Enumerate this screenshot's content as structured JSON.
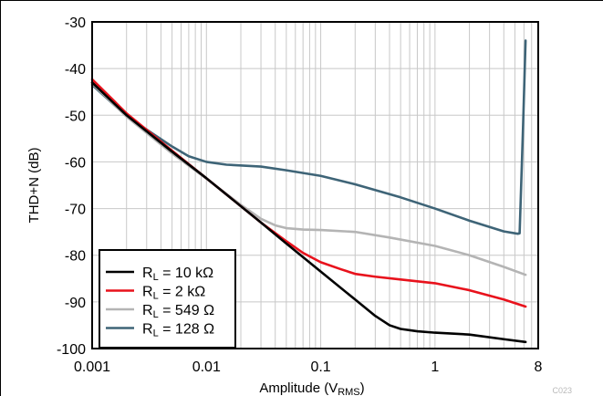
{
  "chart_data": {
    "type": "line",
    "xlabel_main": "Amplitude (V",
    "xlabel_sub": "RMS",
    "xlabel_close": ")",
    "ylabel": "THD+N (dB)",
    "xscale": "log",
    "xlim": [
      0.001,
      8
    ],
    "ylim": [
      -100,
      -30
    ],
    "grid": true,
    "legend_position": "bottom-left",
    "x_ticks": [
      "0.001",
      "0.01",
      "0.1",
      "1",
      "8"
    ],
    "y_ticks": [
      "-30",
      "-40",
      "-50",
      "-60",
      "-70",
      "-80",
      "-90",
      "-100"
    ],
    "series": [
      {
        "name": "R_L = 10 kΩ",
        "legend_prefix": "R",
        "legend_sub": "L",
        "legend_suffix": " = 10 kΩ",
        "color": "#000000",
        "points": [
          [
            0.001,
            -43
          ],
          [
            0.002,
            -50
          ],
          [
            0.005,
            -57.8
          ],
          [
            0.01,
            -63.5
          ],
          [
            0.02,
            -69.5
          ],
          [
            0.03,
            -73
          ],
          [
            0.05,
            -77.5
          ],
          [
            0.1,
            -83.5
          ],
          [
            0.2,
            -89.5
          ],
          [
            0.3,
            -93
          ],
          [
            0.4,
            -95
          ],
          [
            0.5,
            -95.8
          ],
          [
            0.7,
            -96.3
          ],
          [
            1,
            -96.6
          ],
          [
            2,
            -97
          ],
          [
            4,
            -98
          ],
          [
            6.2,
            -98.6
          ]
        ]
      },
      {
        "name": "R_L = 2 kΩ",
        "legend_prefix": "R",
        "legend_sub": "L",
        "legend_suffix": " = 2 kΩ",
        "color": "#e8121c",
        "points": [
          [
            0.001,
            -42.3
          ],
          [
            0.002,
            -49.6
          ],
          [
            0.005,
            -57.6
          ],
          [
            0.01,
            -63.5
          ],
          [
            0.02,
            -69.5
          ],
          [
            0.03,
            -73
          ],
          [
            0.05,
            -77
          ],
          [
            0.07,
            -79.5
          ],
          [
            0.1,
            -81.5
          ],
          [
            0.15,
            -83
          ],
          [
            0.2,
            -84
          ],
          [
            0.3,
            -84.6
          ],
          [
            0.5,
            -85.2
          ],
          [
            1,
            -86
          ],
          [
            2,
            -87.5
          ],
          [
            4,
            -89.5
          ],
          [
            6.2,
            -91
          ]
        ]
      },
      {
        "name": "R_L = 549 Ω",
        "legend_prefix": "R",
        "legend_sub": "L",
        "legend_suffix": " = 549 Ω",
        "color": "#b4b4b4",
        "points": [
          [
            0.001,
            -43.2
          ],
          [
            0.002,
            -50.3
          ],
          [
            0.005,
            -58.2
          ],
          [
            0.01,
            -63.6
          ],
          [
            0.02,
            -69.2
          ],
          [
            0.03,
            -72.2
          ],
          [
            0.04,
            -73.6
          ],
          [
            0.05,
            -74.2
          ],
          [
            0.07,
            -74.5
          ],
          [
            0.1,
            -74.6
          ],
          [
            0.2,
            -75
          ],
          [
            0.4,
            -76.2
          ],
          [
            1,
            -78
          ],
          [
            2,
            -80
          ],
          [
            4,
            -82.5
          ],
          [
            6.2,
            -84.2
          ]
        ]
      },
      {
        "name": "R_L = 128 Ω",
        "legend_prefix": "R",
        "legend_sub": "L",
        "legend_suffix": " = 128 Ω",
        "color": "#3e6477",
        "points": [
          [
            0.001,
            -43.5
          ],
          [
            0.002,
            -50.2
          ],
          [
            0.005,
            -56.7
          ],
          [
            0.007,
            -58.8
          ],
          [
            0.01,
            -60
          ],
          [
            0.015,
            -60.6
          ],
          [
            0.03,
            -61
          ],
          [
            0.05,
            -61.8
          ],
          [
            0.1,
            -63
          ],
          [
            0.2,
            -64.8
          ],
          [
            0.5,
            -67.6
          ],
          [
            1,
            -70
          ],
          [
            2,
            -72.6
          ],
          [
            4,
            -74.9
          ],
          [
            5.3,
            -75.4
          ],
          [
            5.5,
            -75.3
          ],
          [
            5.9,
            -52
          ],
          [
            6.2,
            -34
          ]
        ]
      }
    ]
  },
  "watermark": "C023"
}
